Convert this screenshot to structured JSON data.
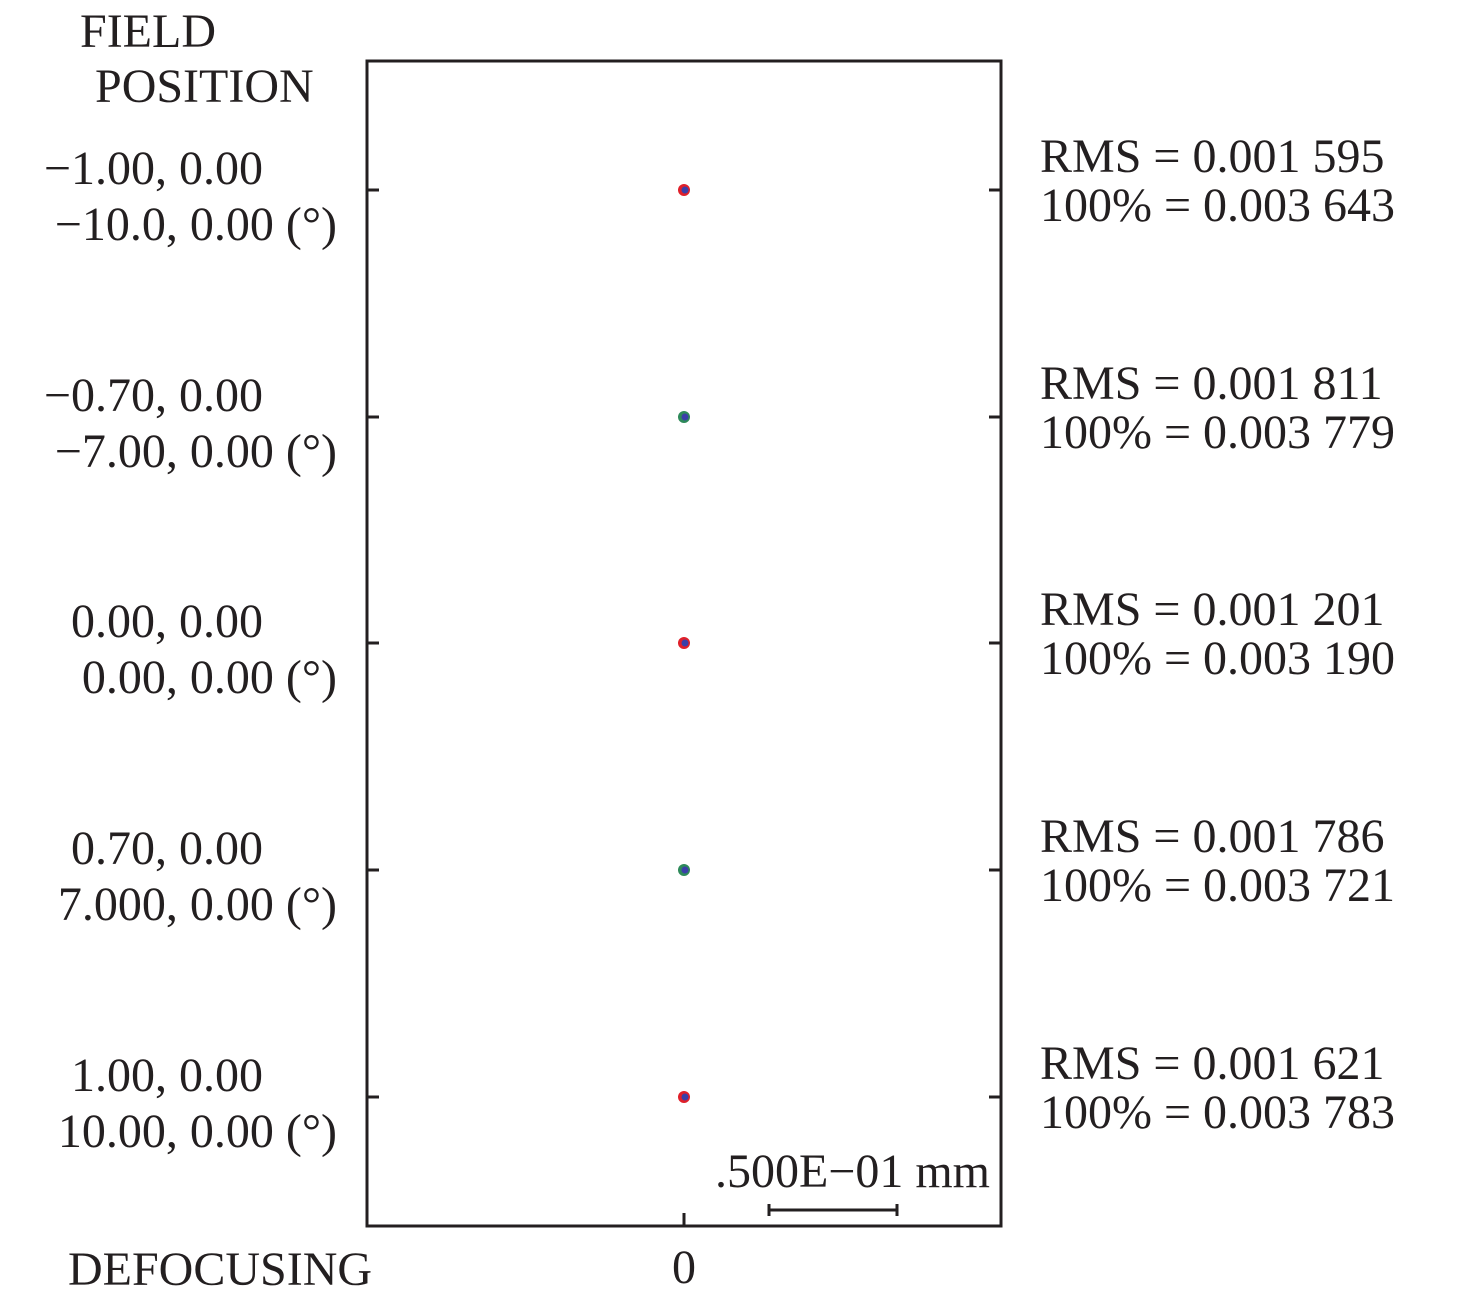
{
  "chart_data": {
    "type": "scatter",
    "title": "",
    "header_label": [
      "FIELD",
      "POSITION"
    ],
    "footer_label": "DEFOCUSING",
    "defocus_values": [
      "0"
    ],
    "scale_bar_label": ".500E−01 mm",
    "scale_bar_mm": 0.05,
    "fields": [
      {
        "norm": "−1.00, 0.00",
        "angle": "−10.0, 0.00 (°)",
        "rms": "RMS  =  0.001 595",
        "geo": "100% =  0.003 643",
        "colors": [
          "#e0202a",
          "#3a3fa8"
        ]
      },
      {
        "norm": "−0.70, 0.00",
        "angle": "−7.00, 0.00 (°)",
        "rms": "RMS  =  0.001 811",
        "geo": "100% =  0.003 779",
        "colors": [
          "#2e8a5a",
          "#3a3fa8"
        ]
      },
      {
        "norm": "0.00, 0.00",
        "angle": "0.00, 0.00 (°)",
        "rms": "RMS  =  0.001 201",
        "geo": "100% =  0.003 190",
        "colors": [
          "#e0202a",
          "#3a3fa8"
        ]
      },
      {
        "norm": "0.70, 0.00",
        "angle": "7.000, 0.00 (°)",
        "rms": "RMS  =  0.001 786",
        "geo": "100% =  0.003 721",
        "colors": [
          "#2e8a5a",
          "#3a3fa8"
        ]
      },
      {
        "norm": "1.00, 0.00",
        "angle": "10.00, 0.00 (°)",
        "rms": "RMS  =  0.001 621",
        "geo": "100% =  0.003 783",
        "colors": [
          "#e0202a",
          "#3a3fa8"
        ]
      }
    ]
  }
}
